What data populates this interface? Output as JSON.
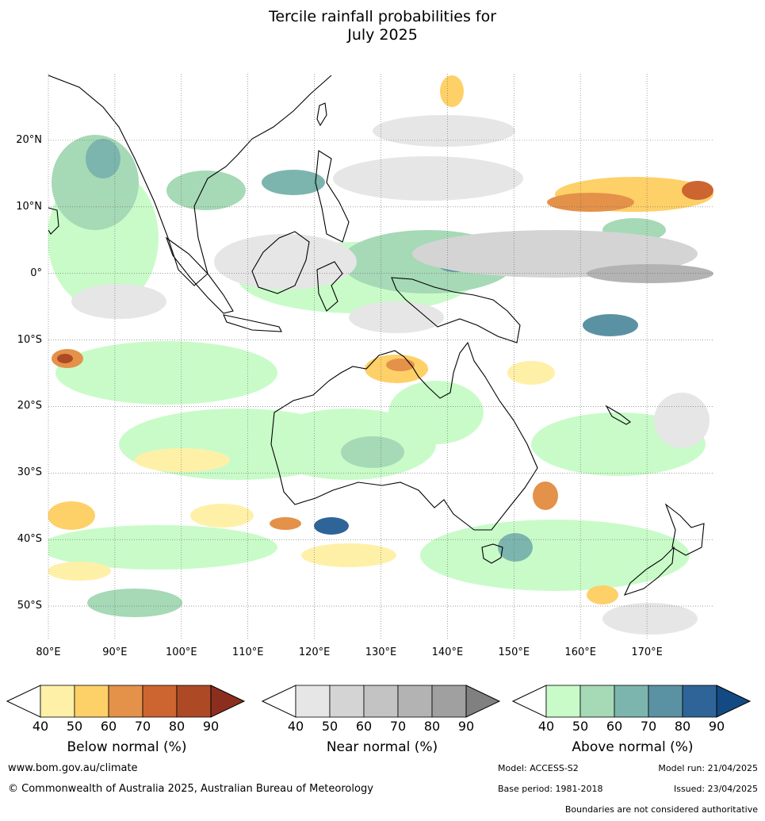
{
  "title_line1": "Tercile rainfall probabilities for",
  "title_line2": "July 2025",
  "map": {
    "lat_labels": [
      "20°N",
      "10°N",
      "0°",
      "10°S",
      "20°S",
      "30°S",
      "40°S",
      "50°S"
    ],
    "lon_labels": [
      "80°E",
      "90°E",
      "100°E",
      "110°E",
      "120°E",
      "130°E",
      "140°E",
      "150°E",
      "160°E",
      "170°E"
    ],
    "lon_range": [
      80,
      180
    ],
    "lat_range": [
      -55,
      30
    ]
  },
  "colorbars": [
    {
      "title": "Below normal (%)",
      "ticks": [
        "40",
        "50",
        "60",
        "70",
        "80",
        "90"
      ],
      "colors": [
        "#fff0a8",
        "#fed068",
        "#e4914a",
        "#cc6530",
        "#ad4a25",
        "#8c2e1e"
      ]
    },
    {
      "title": "Near normal (%)",
      "ticks": [
        "40",
        "50",
        "60",
        "70",
        "80",
        "90"
      ],
      "colors": [
        "#e6e6e6",
        "#d4d4d4",
        "#c3c3c3",
        "#b3b3b3",
        "#a0a0a0",
        "#808080"
      ]
    },
    {
      "title": "Above normal (%)",
      "ticks": [
        "40",
        "50",
        "60",
        "70",
        "80",
        "90"
      ],
      "colors": [
        "#c9fbc9",
        "#a6d9b6",
        "#7cb5ae",
        "#5b92a3",
        "#2f6498",
        "#134a83"
      ]
    }
  ],
  "footer": {
    "website": "www.bom.gov.au/climate",
    "copyright": "© Commonwealth of Australia 2025, Australian Bureau of Meteorology",
    "model": "Model: ACCESS-S2",
    "model_run": "Model run: 21/04/2025",
    "base_period": "Base period: 1981-2018",
    "issued": "Issued: 23/04/2025",
    "disclaimer": "Boundaries are not considered authoritative"
  }
}
